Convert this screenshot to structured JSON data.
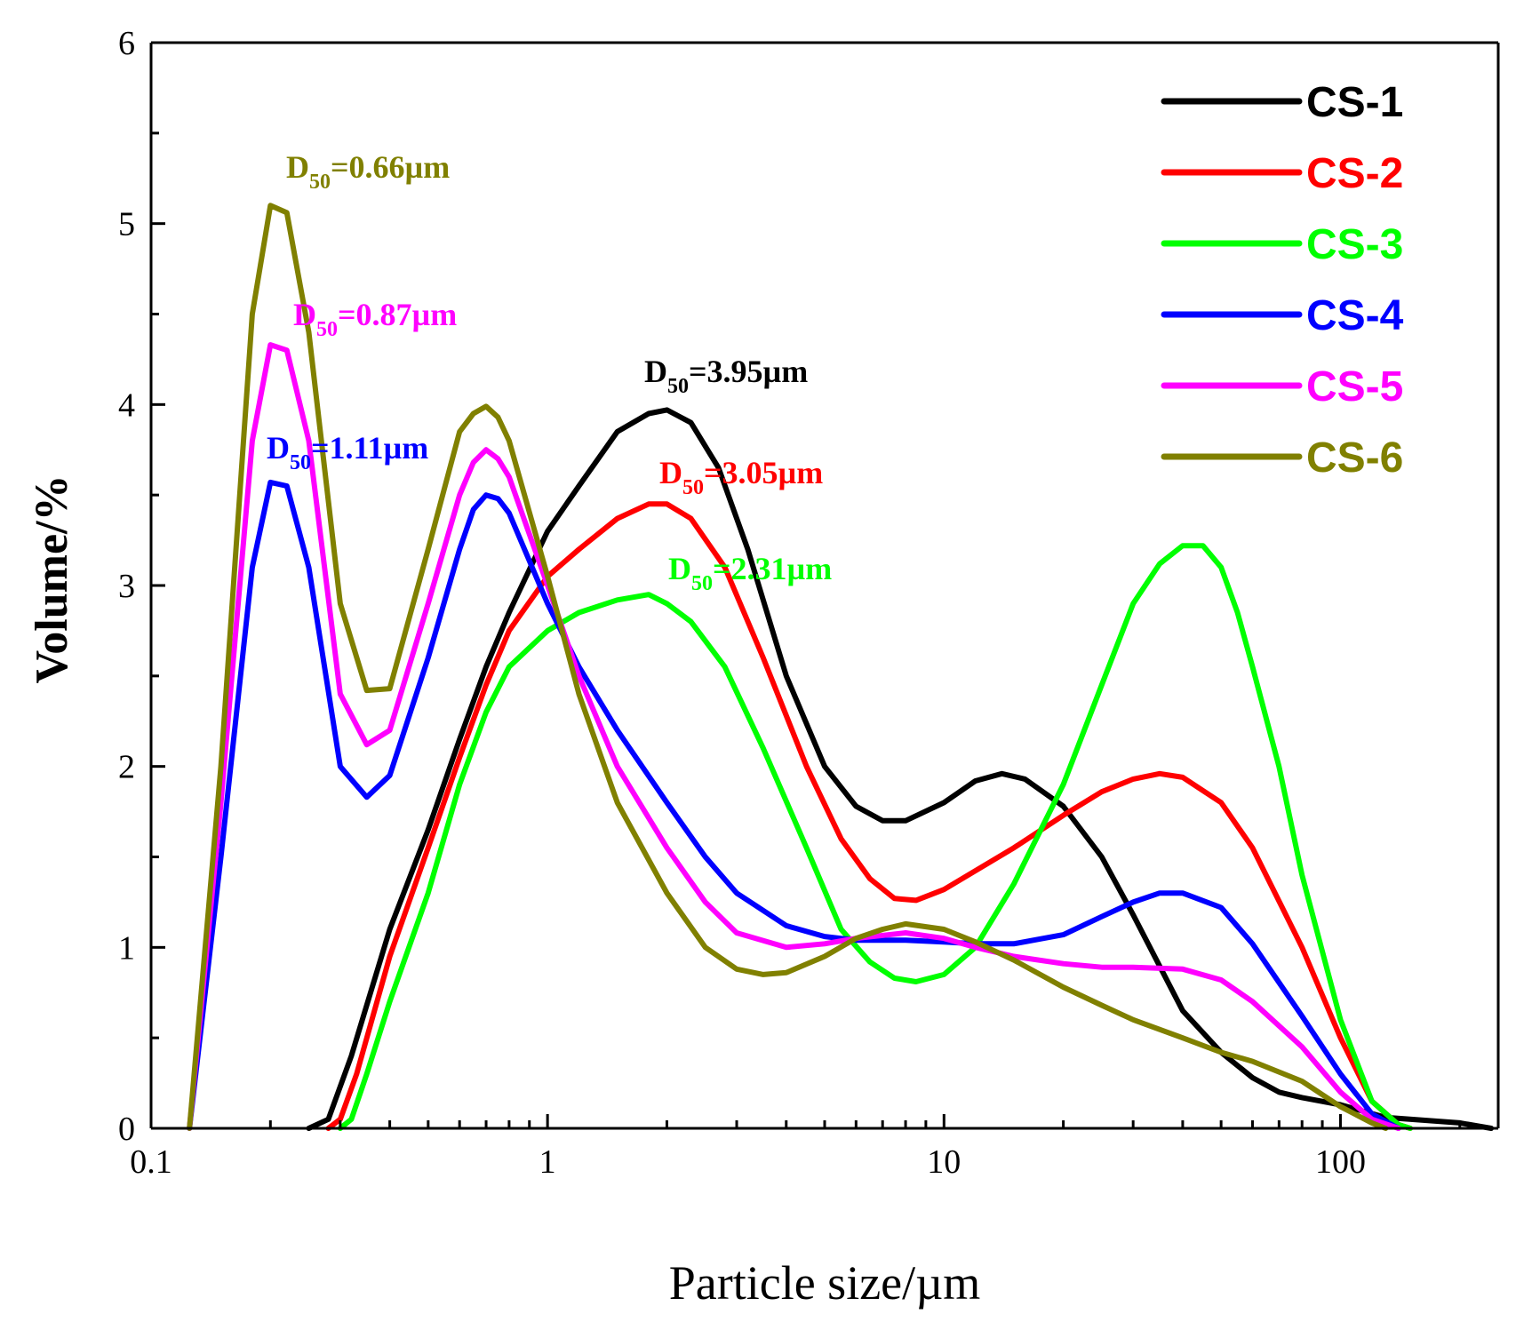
{
  "chart_data": {
    "type": "line",
    "xscale": "log",
    "xlabel": "Particle size/µm",
    "ylabel": "Volume/%",
    "xlim": [
      0.1,
      250
    ],
    "ylim": [
      0,
      6
    ],
    "xticks": [
      0.1,
      1,
      10,
      100
    ],
    "xtick_labels": [
      "0.1",
      "1",
      "10",
      "100"
    ],
    "yticks": [
      0,
      1,
      2,
      3,
      4,
      5,
      6
    ],
    "ytick_labels": [
      "0",
      "1",
      "2",
      "3",
      "4",
      "5",
      "6"
    ],
    "grid": false,
    "legend_position": "top-right",
    "series": [
      {
        "name": "CS-1",
        "color": "#000000",
        "points": [
          [
            0.25,
            0
          ],
          [
            0.28,
            0.05
          ],
          [
            0.32,
            0.4
          ],
          [
            0.4,
            1.1
          ],
          [
            0.5,
            1.65
          ],
          [
            0.6,
            2.15
          ],
          [
            0.7,
            2.55
          ],
          [
            0.8,
            2.85
          ],
          [
            1.0,
            3.3
          ],
          [
            1.2,
            3.55
          ],
          [
            1.5,
            3.85
          ],
          [
            1.8,
            3.95
          ],
          [
            2.0,
            3.97
          ],
          [
            2.3,
            3.9
          ],
          [
            2.7,
            3.65
          ],
          [
            3.2,
            3.2
          ],
          [
            4.0,
            2.5
          ],
          [
            5.0,
            2.0
          ],
          [
            6.0,
            1.78
          ],
          [
            7.0,
            1.7
          ],
          [
            8.0,
            1.7
          ],
          [
            10.0,
            1.8
          ],
          [
            12.0,
            1.92
          ],
          [
            14.0,
            1.96
          ],
          [
            16.0,
            1.93
          ],
          [
            20.0,
            1.78
          ],
          [
            25.0,
            1.5
          ],
          [
            30.0,
            1.18
          ],
          [
            40.0,
            0.65
          ],
          [
            50.0,
            0.42
          ],
          [
            60.0,
            0.28
          ],
          [
            70.0,
            0.2
          ],
          [
            80.0,
            0.17
          ],
          [
            100.0,
            0.13
          ],
          [
            130.0,
            0.06
          ],
          [
            200.0,
            0.03
          ],
          [
            240.0,
            0
          ]
        ]
      },
      {
        "name": "CS-2",
        "color": "#ff0000",
        "points": [
          [
            0.28,
            0
          ],
          [
            0.3,
            0.05
          ],
          [
            0.33,
            0.3
          ],
          [
            0.4,
            0.95
          ],
          [
            0.5,
            1.55
          ],
          [
            0.6,
            2.05
          ],
          [
            0.7,
            2.45
          ],
          [
            0.8,
            2.75
          ],
          [
            1.0,
            3.05
          ],
          [
            1.2,
            3.2
          ],
          [
            1.5,
            3.37
          ],
          [
            1.8,
            3.45
          ],
          [
            2.0,
            3.45
          ],
          [
            2.3,
            3.37
          ],
          [
            2.8,
            3.1
          ],
          [
            3.5,
            2.6
          ],
          [
            4.5,
            2.0
          ],
          [
            5.5,
            1.6
          ],
          [
            6.5,
            1.38
          ],
          [
            7.5,
            1.27
          ],
          [
            8.5,
            1.26
          ],
          [
            10.0,
            1.32
          ],
          [
            15.0,
            1.55
          ],
          [
            20.0,
            1.73
          ],
          [
            25.0,
            1.86
          ],
          [
            30.0,
            1.93
          ],
          [
            35.0,
            1.96
          ],
          [
            40.0,
            1.94
          ],
          [
            50.0,
            1.8
          ],
          [
            60.0,
            1.55
          ],
          [
            80.0,
            1.0
          ],
          [
            100.0,
            0.5
          ],
          [
            120.0,
            0.15
          ],
          [
            140.0,
            0.02
          ],
          [
            150.0,
            0
          ]
        ]
      },
      {
        "name": "CS-3",
        "color": "#00ff00",
        "points": [
          [
            0.3,
            0
          ],
          [
            0.32,
            0.05
          ],
          [
            0.35,
            0.3
          ],
          [
            0.4,
            0.7
          ],
          [
            0.5,
            1.3
          ],
          [
            0.6,
            1.9
          ],
          [
            0.7,
            2.3
          ],
          [
            0.8,
            2.55
          ],
          [
            1.0,
            2.75
          ],
          [
            1.2,
            2.85
          ],
          [
            1.5,
            2.92
          ],
          [
            1.8,
            2.95
          ],
          [
            2.0,
            2.9
          ],
          [
            2.3,
            2.8
          ],
          [
            2.8,
            2.55
          ],
          [
            3.5,
            2.1
          ],
          [
            4.5,
            1.55
          ],
          [
            5.5,
            1.1
          ],
          [
            6.5,
            0.92
          ],
          [
            7.5,
            0.83
          ],
          [
            8.5,
            0.81
          ],
          [
            10.0,
            0.85
          ],
          [
            12.0,
            1.0
          ],
          [
            15.0,
            1.35
          ],
          [
            20.0,
            1.9
          ],
          [
            25.0,
            2.45
          ],
          [
            30.0,
            2.9
          ],
          [
            35.0,
            3.12
          ],
          [
            40.0,
            3.22
          ],
          [
            45.0,
            3.22
          ],
          [
            50.0,
            3.1
          ],
          [
            55.0,
            2.85
          ],
          [
            60.0,
            2.55
          ],
          [
            70.0,
            2.0
          ],
          [
            80.0,
            1.4
          ],
          [
            100.0,
            0.6
          ],
          [
            120.0,
            0.15
          ],
          [
            140.0,
            0.02
          ],
          [
            150.0,
            0
          ]
        ]
      },
      {
        "name": "CS-4",
        "color": "#0000ff",
        "points": [
          [
            0.125,
            0
          ],
          [
            0.15,
            1.5
          ],
          [
            0.18,
            3.1
          ],
          [
            0.2,
            3.57
          ],
          [
            0.22,
            3.55
          ],
          [
            0.25,
            3.1
          ],
          [
            0.3,
            2.0
          ],
          [
            0.35,
            1.83
          ],
          [
            0.4,
            1.95
          ],
          [
            0.5,
            2.6
          ],
          [
            0.6,
            3.2
          ],
          [
            0.65,
            3.42
          ],
          [
            0.7,
            3.5
          ],
          [
            0.75,
            3.48
          ],
          [
            0.8,
            3.4
          ],
          [
            1.0,
            2.9
          ],
          [
            1.2,
            2.55
          ],
          [
            1.5,
            2.2
          ],
          [
            2.0,
            1.8
          ],
          [
            2.5,
            1.5
          ],
          [
            3.0,
            1.3
          ],
          [
            4.0,
            1.12
          ],
          [
            5.0,
            1.06
          ],
          [
            6.0,
            1.04
          ],
          [
            8.0,
            1.04
          ],
          [
            10.0,
            1.03
          ],
          [
            12.0,
            1.02
          ],
          [
            15.0,
            1.02
          ],
          [
            20.0,
            1.07
          ],
          [
            25.0,
            1.17
          ],
          [
            30.0,
            1.25
          ],
          [
            35.0,
            1.3
          ],
          [
            40.0,
            1.3
          ],
          [
            50.0,
            1.22
          ],
          [
            60.0,
            1.02
          ],
          [
            80.0,
            0.62
          ],
          [
            100.0,
            0.3
          ],
          [
            120.0,
            0.08
          ],
          [
            140.0,
            0
          ]
        ]
      },
      {
        "name": "CS-5",
        "color": "#ff00ff",
        "points": [
          [
            0.125,
            0
          ],
          [
            0.15,
            1.8
          ],
          [
            0.18,
            3.8
          ],
          [
            0.2,
            4.33
          ],
          [
            0.22,
            4.3
          ],
          [
            0.25,
            3.8
          ],
          [
            0.3,
            2.4
          ],
          [
            0.35,
            2.12
          ],
          [
            0.4,
            2.2
          ],
          [
            0.5,
            2.9
          ],
          [
            0.6,
            3.5
          ],
          [
            0.65,
            3.68
          ],
          [
            0.7,
            3.75
          ],
          [
            0.75,
            3.7
          ],
          [
            0.8,
            3.6
          ],
          [
            1.0,
            3.0
          ],
          [
            1.2,
            2.5
          ],
          [
            1.5,
            2.0
          ],
          [
            2.0,
            1.55
          ],
          [
            2.5,
            1.25
          ],
          [
            3.0,
            1.08
          ],
          [
            4.0,
            1.0
          ],
          [
            5.0,
            1.02
          ],
          [
            6.0,
            1.05
          ],
          [
            8.0,
            1.08
          ],
          [
            10.0,
            1.05
          ],
          [
            12.0,
            1.0
          ],
          [
            15.0,
            0.95
          ],
          [
            20.0,
            0.91
          ],
          [
            25.0,
            0.89
          ],
          [
            30.0,
            0.89
          ],
          [
            40.0,
            0.88
          ],
          [
            50.0,
            0.82
          ],
          [
            60.0,
            0.7
          ],
          [
            80.0,
            0.45
          ],
          [
            100.0,
            0.2
          ],
          [
            120.0,
            0.05
          ],
          [
            140.0,
            0
          ]
        ]
      },
      {
        "name": "CS-6",
        "color": "#808000",
        "points": [
          [
            0.125,
            0
          ],
          [
            0.15,
            2.0
          ],
          [
            0.18,
            4.5
          ],
          [
            0.2,
            5.1
          ],
          [
            0.22,
            5.06
          ],
          [
            0.25,
            4.4
          ],
          [
            0.3,
            2.9
          ],
          [
            0.35,
            2.42
          ],
          [
            0.4,
            2.43
          ],
          [
            0.5,
            3.2
          ],
          [
            0.6,
            3.85
          ],
          [
            0.65,
            3.95
          ],
          [
            0.7,
            3.99
          ],
          [
            0.75,
            3.93
          ],
          [
            0.8,
            3.8
          ],
          [
            1.0,
            3.05
          ],
          [
            1.2,
            2.4
          ],
          [
            1.5,
            1.8
          ],
          [
            2.0,
            1.3
          ],
          [
            2.5,
            1.0
          ],
          [
            3.0,
            0.88
          ],
          [
            3.5,
            0.85
          ],
          [
            4.0,
            0.86
          ],
          [
            5.0,
            0.95
          ],
          [
            6.0,
            1.05
          ],
          [
            7.0,
            1.1
          ],
          [
            8.0,
            1.13
          ],
          [
            10.0,
            1.1
          ],
          [
            12.0,
            1.03
          ],
          [
            15.0,
            0.93
          ],
          [
            20.0,
            0.78
          ],
          [
            25.0,
            0.68
          ],
          [
            30.0,
            0.6
          ],
          [
            40.0,
            0.5
          ],
          [
            50.0,
            0.42
          ],
          [
            60.0,
            0.37
          ],
          [
            80.0,
            0.26
          ],
          [
            100.0,
            0.12
          ],
          [
            120.0,
            0.03
          ],
          [
            130.0,
            0
          ]
        ]
      }
    ],
    "annotations": [
      {
        "prefix": "D",
        "sub": "50",
        "value": "=0.66µm",
        "color": "#808000"
      },
      {
        "prefix": "D",
        "sub": "50",
        "value": "=0.87µm",
        "color": "#ff00ff"
      },
      {
        "prefix": "D",
        "sub": "50",
        "value": "=1.11µm",
        "color": "#0000ff"
      },
      {
        "prefix": "D",
        "sub": "50",
        "value": "=3.95µm",
        "color": "#000000"
      },
      {
        "prefix": "D",
        "sub": "50",
        "value": "=3.05µm",
        "color": "#ff0000"
      },
      {
        "prefix": "D",
        "sub": "50",
        "value": "=2.31µm",
        "color": "#00ff00"
      }
    ]
  }
}
